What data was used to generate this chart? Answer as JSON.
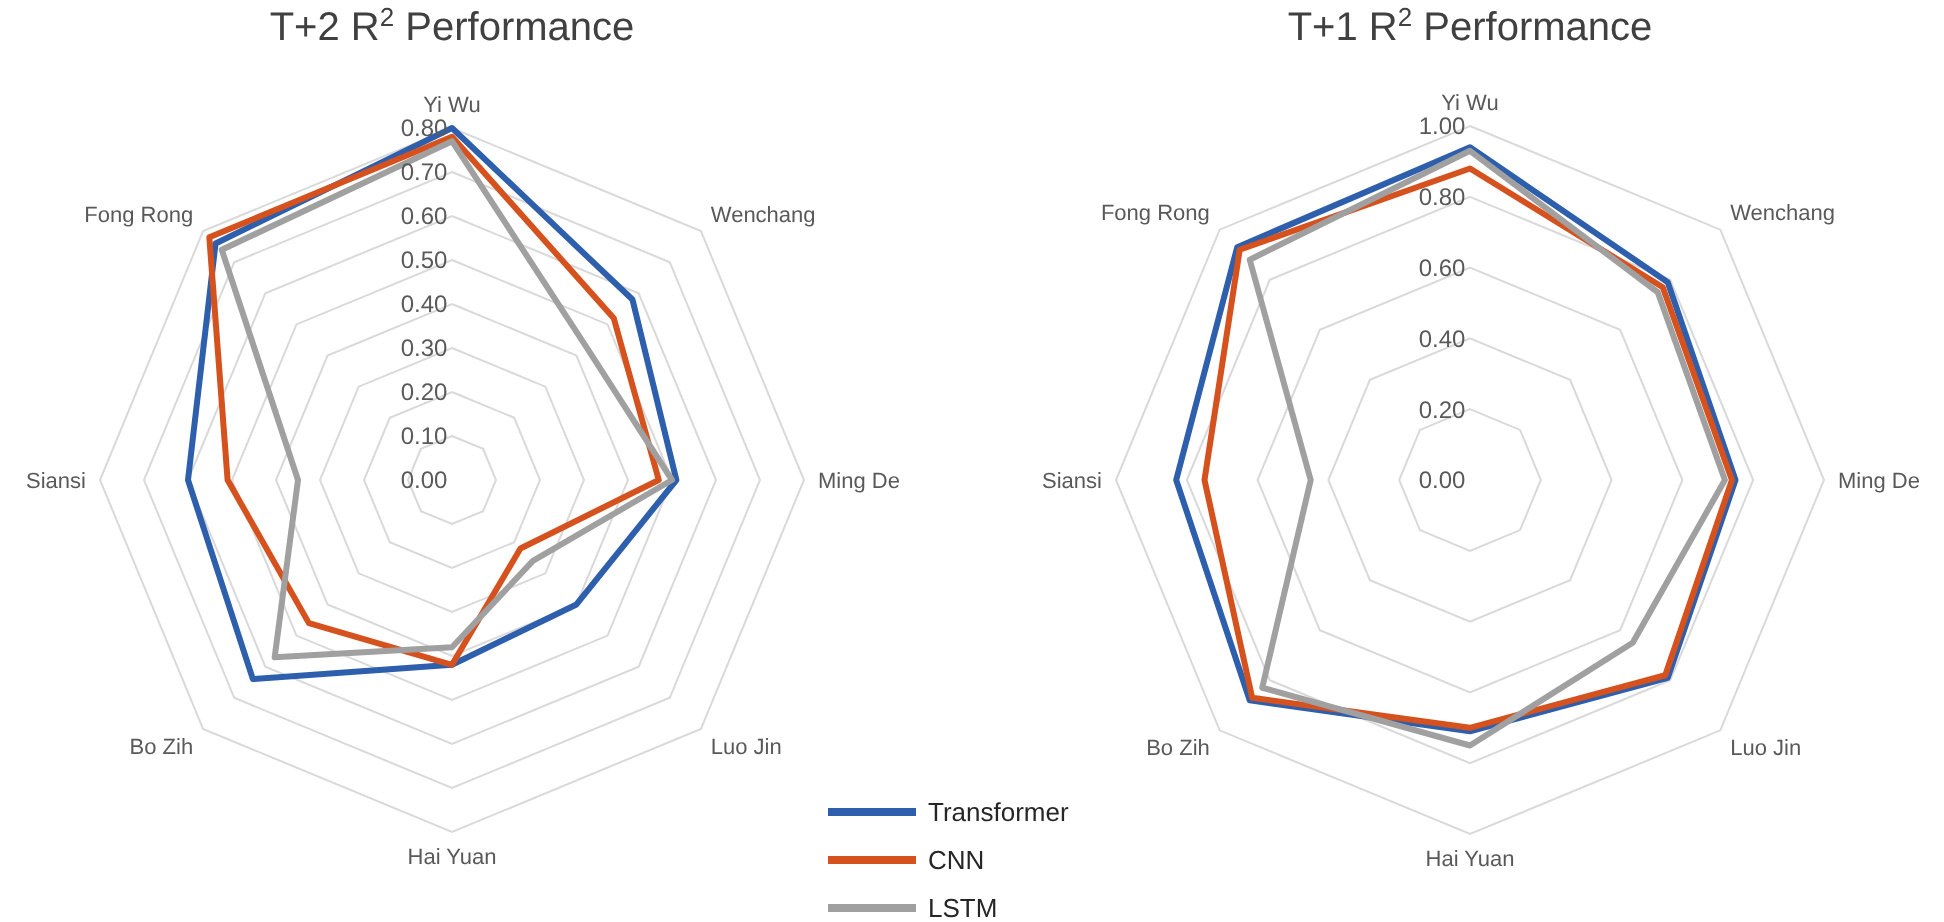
{
  "chart_data": [
    {
      "type": "radar",
      "title": "T+2 R$^{2}$ Performance",
      "categories": [
        "Yi Wu",
        "Wenchang",
        "Ming De",
        "Luo Jin",
        "Hai Yuan",
        "Bo Zih",
        "Siansi",
        "Fong Rong"
      ],
      "ylim": [
        0,
        0.8
      ],
      "yticks": [
        {
          "value": 0,
          "label": "0.00"
        },
        {
          "value": 0.1,
          "label": "0.10"
        },
        {
          "value": 0.2,
          "label": "0.20"
        },
        {
          "value": 0.3,
          "label": "0.30"
        },
        {
          "value": 0.4,
          "label": "0.40"
        },
        {
          "value": 0.5,
          "label": "0.50"
        },
        {
          "value": 0.6,
          "label": "0.60"
        },
        {
          "value": 0.7,
          "label": "0.70"
        },
        {
          "value": 0.8,
          "label": "0.80"
        }
      ],
      "grid": true,
      "legend": "bottom right",
      "marker": "none",
      "series": [
        {
          "name": "Transformer",
          "color": "#2e5fad",
          "values": [
            0.8,
            0.58,
            0.51,
            0.4,
            0.42,
            0.64,
            0.6,
            0.76
          ]
        },
        {
          "name": "CNN",
          "color": "#d5511d",
          "values": [
            0.78,
            0.52,
            0.47,
            0.22,
            0.42,
            0.46,
            0.51,
            0.78
          ]
        },
        {
          "name": "LSTM",
          "color": "#a0a0a0",
          "values": [
            0.77,
            0.43,
            0.5,
            0.26,
            0.38,
            0.57,
            0.35,
            0.74
          ]
        }
      ]
    },
    {
      "type": "radar",
      "title": "T+1 R$^{2}$ Performance",
      "categories": [
        "Yi Wu",
        "Wenchang",
        "Ming De",
        "Luo Jin",
        "Hai Yuan",
        "Bo Zih",
        "Siansi",
        "Fong Rong"
      ],
      "ylim": [
        0,
        1
      ],
      "yticks": [
        {
          "value": 0,
          "label": "0.00"
        },
        {
          "value": 0.2,
          "label": "0.20"
        },
        {
          "value": 0.4,
          "label": "0.40"
        },
        {
          "value": 0.6,
          "label": "0.60"
        },
        {
          "value": 0.8,
          "label": "0.80"
        },
        {
          "value": 1,
          "label": "1.00"
        }
      ],
      "grid": true,
      "marker": "none",
      "series": [
        {
          "name": "Transformer",
          "color": "#2e5fad",
          "values": [
            0.94,
            0.79,
            0.75,
            0.79,
            0.71,
            0.88,
            0.83,
            0.93
          ]
        },
        {
          "name": "CNN",
          "color": "#d5511d",
          "values": [
            0.88,
            0.77,
            0.74,
            0.78,
            0.7,
            0.87,
            0.75,
            0.92
          ]
        },
        {
          "name": "LSTM",
          "color": "#a0a0a0",
          "values": [
            0.93,
            0.75,
            0.72,
            0.65,
            0.75,
            0.83,
            0.45,
            0.88
          ]
        }
      ]
    }
  ]
}
